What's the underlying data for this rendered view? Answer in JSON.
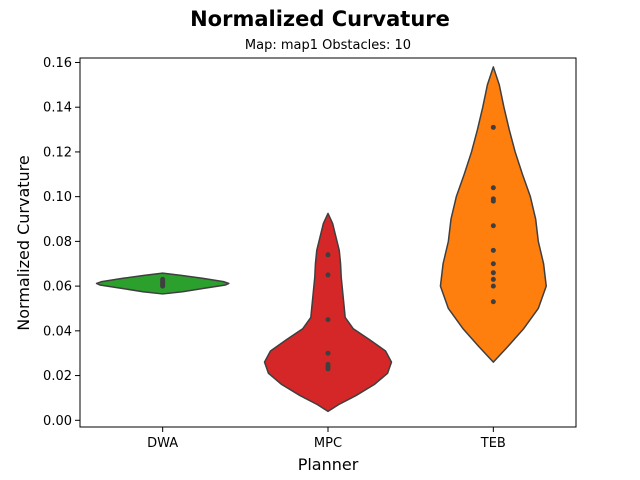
{
  "chart_data": {
    "type": "violin",
    "title": "Normalized Curvature",
    "subtitle": "Map: map1 Obstacles: 10",
    "xlabel": "Planner",
    "ylabel": "Normalized Curvature",
    "categories": [
      "DWA",
      "MPC",
      "TEB"
    ],
    "ylim": [
      -0.003,
      0.162
    ],
    "yticks": [
      0.0,
      0.02,
      0.04,
      0.06,
      0.08,
      0.1,
      0.12,
      0.14,
      0.16
    ],
    "ytick_labels": [
      "0.00",
      "0.02",
      "0.04",
      "0.06",
      "0.08",
      "0.10",
      "0.12",
      "0.14",
      "0.16"
    ],
    "grid": false,
    "series": [
      {
        "category": "DWA",
        "color": "#2ca02c",
        "points": [
          0.0605,
          0.0612,
          0.0618,
          0.0625,
          0.063,
          0.06
        ],
        "profile": [
          [
            0.0565,
            0.0
          ],
          [
            0.0575,
            0.3
          ],
          [
            0.059,
            0.62
          ],
          [
            0.0605,
            0.95
          ],
          [
            0.0612,
            1.0
          ],
          [
            0.062,
            0.92
          ],
          [
            0.0635,
            0.6
          ],
          [
            0.0648,
            0.28
          ],
          [
            0.0658,
            0.0
          ]
        ]
      },
      {
        "category": "MPC",
        "color": "#d62728",
        "points": [
          0.023,
          0.024,
          0.025,
          0.03,
          0.045,
          0.065,
          0.074
        ],
        "profile": [
          [
            0.004,
            0.0
          ],
          [
            0.007,
            0.16
          ],
          [
            0.011,
            0.42
          ],
          [
            0.016,
            0.7
          ],
          [
            0.021,
            0.9
          ],
          [
            0.026,
            0.96
          ],
          [
            0.031,
            0.87
          ],
          [
            0.036,
            0.63
          ],
          [
            0.041,
            0.38
          ],
          [
            0.046,
            0.26
          ],
          [
            0.052,
            0.24
          ],
          [
            0.058,
            0.22
          ],
          [
            0.064,
            0.2
          ],
          [
            0.07,
            0.19
          ],
          [
            0.076,
            0.17
          ],
          [
            0.082,
            0.12
          ],
          [
            0.088,
            0.07
          ],
          [
            0.0925,
            0.0
          ]
        ]
      },
      {
        "category": "TEB",
        "color": "#ff7f0e",
        "points": [
          0.053,
          0.06,
          0.063,
          0.066,
          0.07,
          0.076,
          0.087,
          0.098,
          0.099,
          0.104,
          0.131
        ],
        "profile": [
          [
            0.026,
            0.0
          ],
          [
            0.033,
            0.22
          ],
          [
            0.041,
            0.46
          ],
          [
            0.05,
            0.68
          ],
          [
            0.06,
            0.8
          ],
          [
            0.07,
            0.76
          ],
          [
            0.08,
            0.68
          ],
          [
            0.09,
            0.64
          ],
          [
            0.1,
            0.56
          ],
          [
            0.11,
            0.44
          ],
          [
            0.12,
            0.33
          ],
          [
            0.13,
            0.24
          ],
          [
            0.14,
            0.16
          ],
          [
            0.15,
            0.09
          ],
          [
            0.158,
            0.0
          ]
        ]
      }
    ]
  }
}
